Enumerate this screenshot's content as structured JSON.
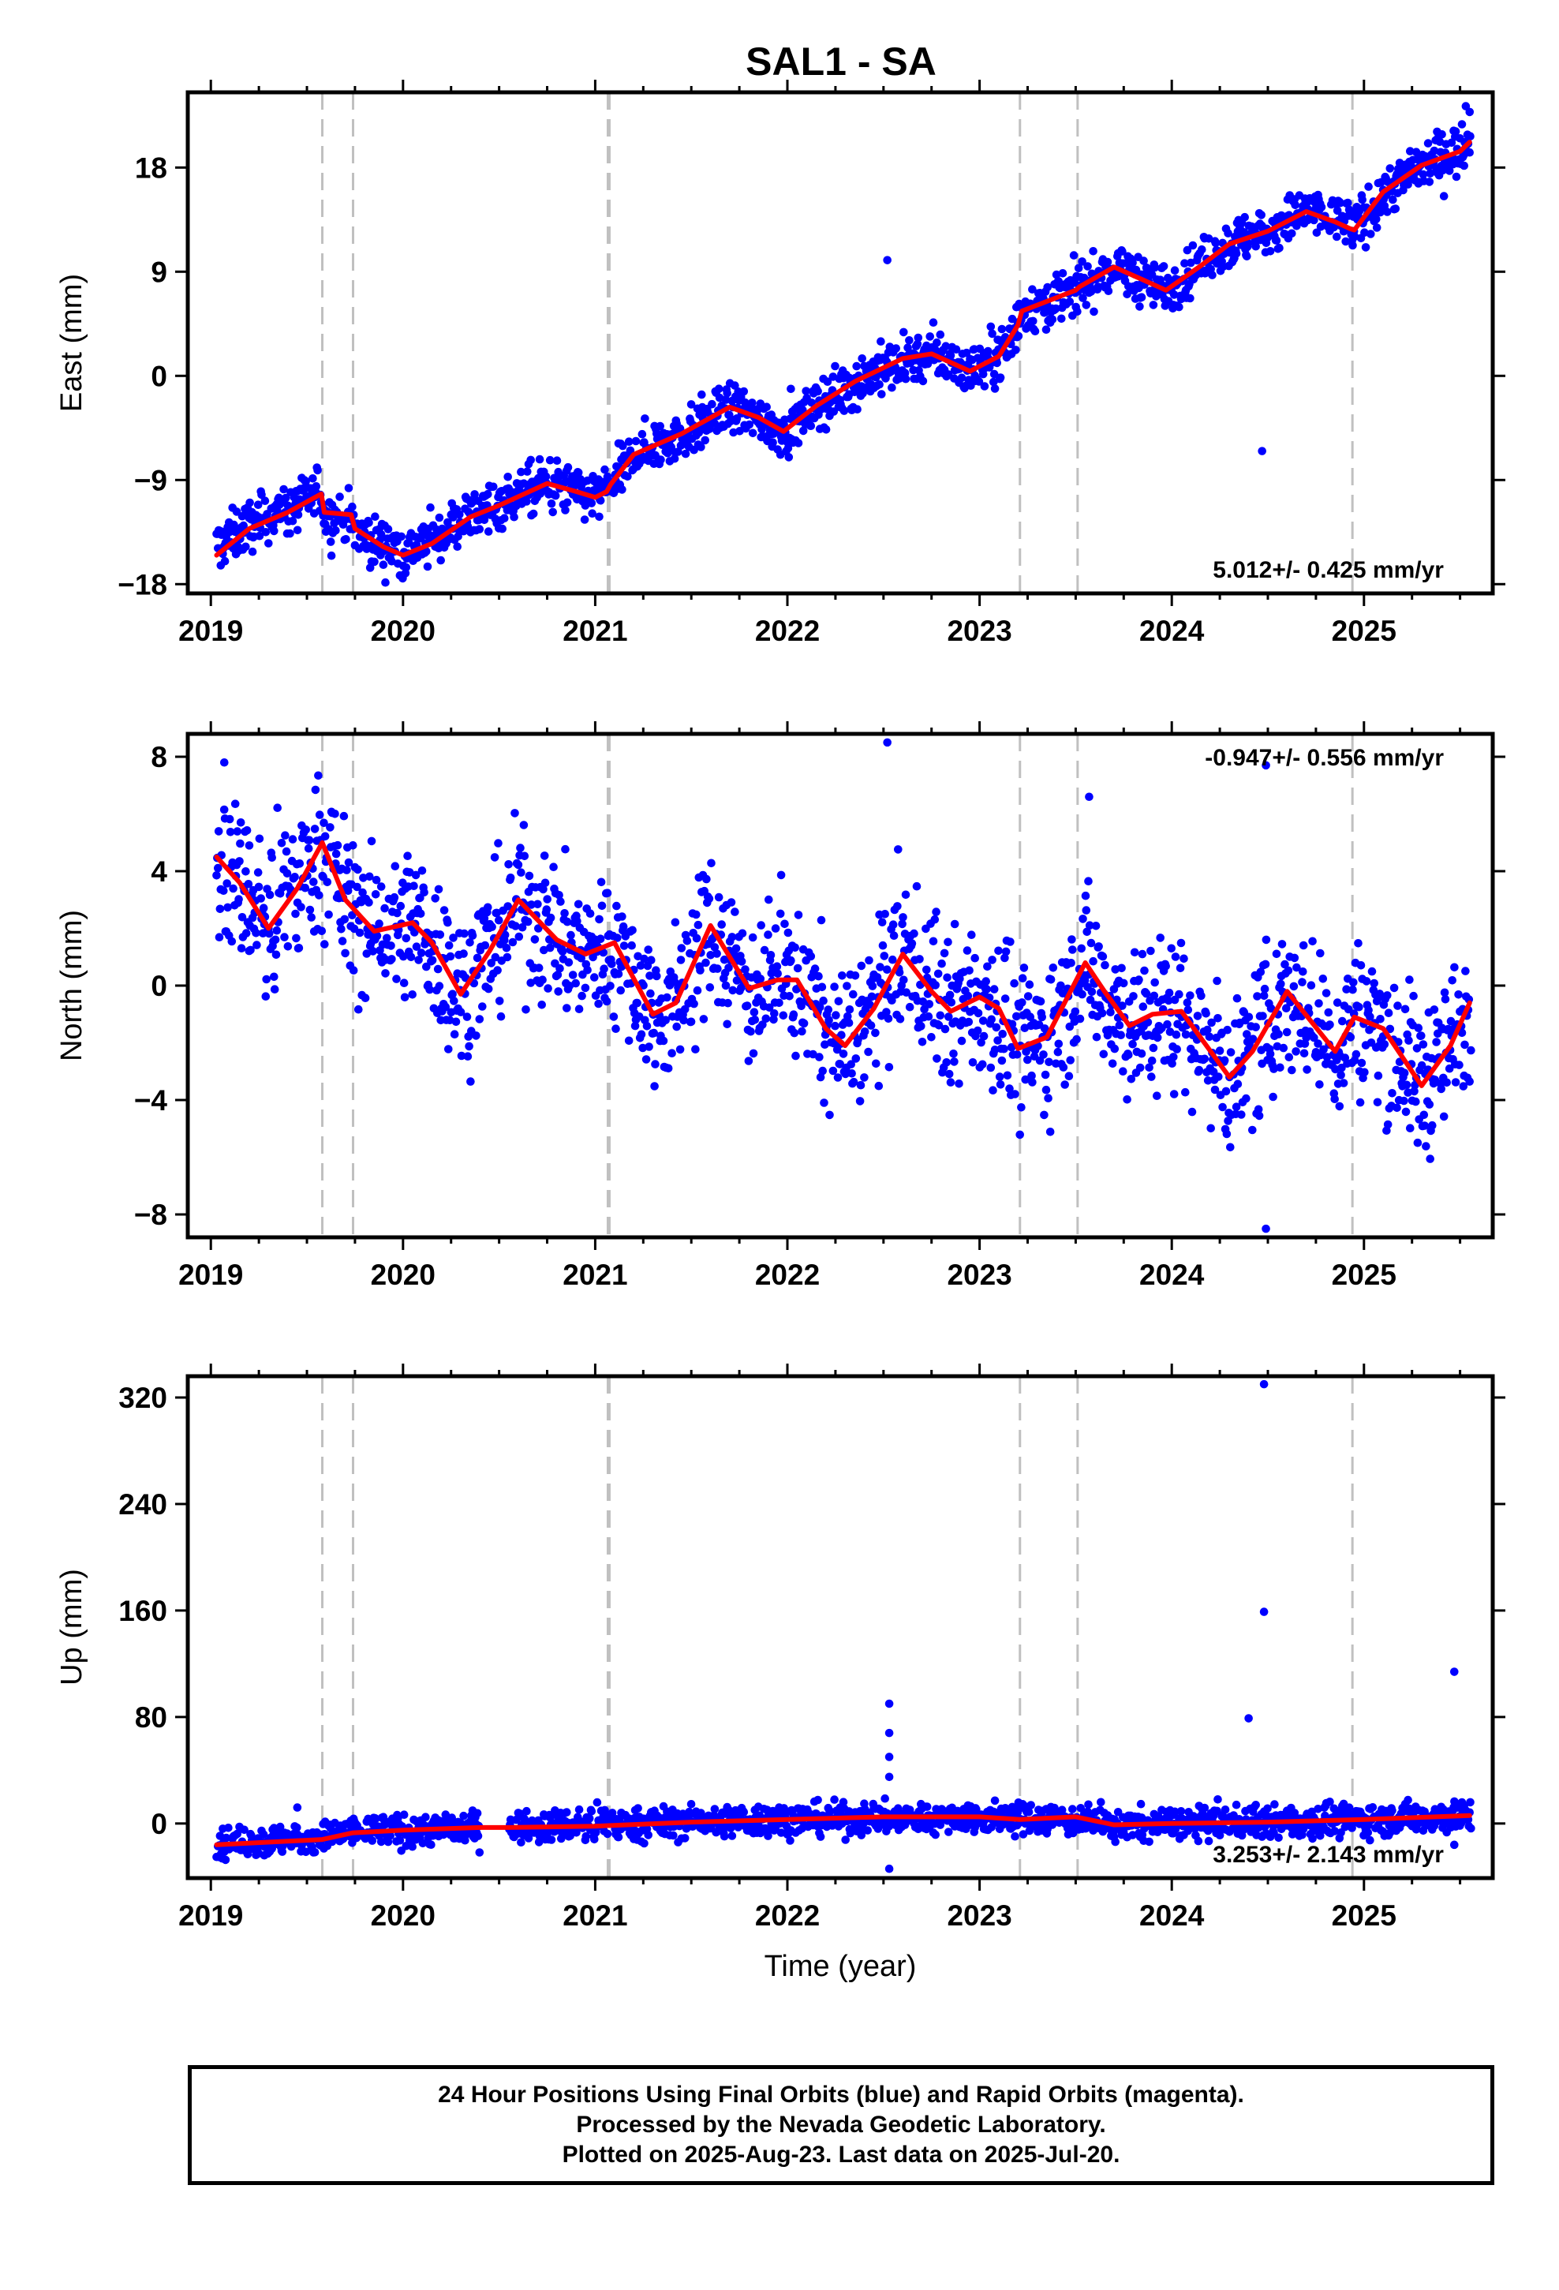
{
  "title": "SAL1 - SA",
  "chart_data": [
    {
      "type": "scatter",
      "panel": "east",
      "ylabel": "East (mm)",
      "xlabel": "",
      "xlim": [
        2018.88,
        2025.67
      ],
      "ylim": [
        -18.8,
        24.5
      ],
      "yticks": [
        -18,
        -9,
        0,
        9,
        18
      ],
      "xticks": [
        2019,
        2020,
        2021,
        2022,
        2023,
        2024,
        2025
      ],
      "grid": false,
      "rate_label": "5.012+/- 0.425 mm/yr",
      "rate_label_position": "bottom-right",
      "offset_lines": [
        2019.58,
        2019.74,
        2021.07,
        2023.21,
        2023.51,
        2024.94
      ],
      "series": [
        {
          "name": "",
          "color": "#0000ff",
          "kind": "points",
          "noise": 1.1,
          "trend": [
            [
              2019.03,
              -14.8
            ],
            [
              2019.2,
              -12.9
            ],
            [
              2019.4,
              -11.6
            ],
            [
              2019.575,
              -10.3
            ],
            [
              2019.59,
              -12.0
            ],
            [
              2019.73,
              -12.4
            ],
            [
              2019.75,
              -13.6
            ],
            [
              2019.9,
              -14.6
            ],
            [
              2020.0,
              -15.3
            ],
            [
              2020.15,
              -14.2
            ],
            [
              2020.35,
              -12.0
            ],
            [
              2020.5,
              -11.0
            ],
            [
              2020.75,
              -9.3
            ],
            [
              2020.9,
              -10.0
            ],
            [
              2021.0,
              -10.5
            ],
            [
              2021.06,
              -9.9
            ],
            [
              2021.08,
              -9.4
            ],
            [
              2021.2,
              -6.8
            ],
            [
              2021.45,
              -5.1
            ],
            [
              2021.7,
              -2.8
            ],
            [
              2021.85,
              -3.7
            ],
            [
              2021.98,
              -4.8
            ],
            [
              2022.15,
              -2.6
            ],
            [
              2022.35,
              -0.6
            ],
            [
              2022.6,
              1.4
            ],
            [
              2022.75,
              1.9
            ],
            [
              2022.95,
              0.5
            ],
            [
              2023.1,
              1.8
            ],
            [
              2023.2,
              4.4
            ],
            [
              2023.22,
              5.6
            ],
            [
              2023.5,
              7.3
            ],
            [
              2023.52,
              7.7
            ],
            [
              2023.7,
              9.3
            ],
            [
              2023.85,
              8.3
            ],
            [
              2023.97,
              7.4
            ],
            [
              2024.15,
              9.5
            ],
            [
              2024.3,
              11.4
            ],
            [
              2024.5,
              12.4
            ],
            [
              2024.7,
              14.2
            ],
            [
              2024.85,
              13.4
            ],
            [
              2024.93,
              13.0
            ],
            [
              2024.95,
              12.7
            ],
            [
              2025.1,
              15.8
            ],
            [
              2025.3,
              18.2
            ],
            [
              2025.5,
              19.5
            ],
            [
              2025.55,
              20.2
            ]
          ]
        },
        {
          "name": "",
          "color": "#0000ff",
          "kind": "outliers",
          "x": [
            2022.52,
            2024.47,
            2025.53,
            2025.55
          ],
          "y": [
            10.0,
            -6.5,
            23.3,
            22.8
          ]
        },
        {
          "name": "",
          "color": "#ff0000",
          "kind": "line",
          "x": [
            2019.03,
            2019.2,
            2019.4,
            2019.575,
            2019.59,
            2019.73,
            2019.75,
            2019.9,
            2020.0,
            2020.15,
            2020.35,
            2020.5,
            2020.75,
            2020.9,
            2021.0,
            2021.06,
            2021.08,
            2021.2,
            2021.45,
            2021.7,
            2021.85,
            2021.98,
            2022.15,
            2022.35,
            2022.6,
            2022.75,
            2022.95,
            2023.1,
            2023.2,
            2023.22,
            2023.5,
            2023.52,
            2023.7,
            2023.85,
            2023.97,
            2024.15,
            2024.3,
            2024.5,
            2024.7,
            2024.85,
            2024.93,
            2024.95,
            2025.1,
            2025.3,
            2025.5,
            2025.55
          ],
          "y": [
            -15.5,
            -13.2,
            -11.8,
            -10.2,
            -11.8,
            -12.0,
            -13.2,
            -14.8,
            -15.5,
            -14.5,
            -12.2,
            -11.2,
            -9.3,
            -10.0,
            -10.5,
            -10.0,
            -9.4,
            -6.8,
            -5.0,
            -2.7,
            -3.6,
            -4.8,
            -2.6,
            -0.5,
            1.5,
            1.9,
            0.4,
            1.7,
            4.4,
            5.6,
            7.4,
            7.7,
            9.4,
            8.3,
            7.4,
            9.5,
            11.4,
            12.5,
            14.2,
            13.3,
            12.7,
            12.6,
            15.9,
            18.2,
            19.4,
            20.2
          ]
        }
      ]
    },
    {
      "type": "scatter",
      "panel": "north",
      "ylabel": "North (mm)",
      "xlabel": "",
      "xlim": [
        2018.88,
        2025.67
      ],
      "ylim": [
        -8.8,
        8.8
      ],
      "yticks": [
        -8,
        -4,
        0,
        4,
        8
      ],
      "xticks": [
        2019,
        2020,
        2021,
        2022,
        2023,
        2024,
        2025
      ],
      "grid": false,
      "rate_label": "-0.947+/- 0.556 mm/yr",
      "rate_label_position": "top-right",
      "offset_lines": [
        2019.58,
        2019.74,
        2021.07,
        2023.21,
        2023.51,
        2024.94
      ],
      "series": [
        {
          "name": "",
          "color": "#0000ff",
          "kind": "points",
          "noise": 1.35,
          "trend": [
            [
              2019.03,
              4.5
            ],
            [
              2019.15,
              3.6
            ],
            [
              2019.3,
              2.0
            ],
            [
              2019.45,
              3.4
            ],
            [
              2019.58,
              5.0
            ],
            [
              2019.7,
              3.0
            ],
            [
              2019.85,
              1.9
            ],
            [
              2020.05,
              2.2
            ],
            [
              2020.15,
              1.5
            ],
            [
              2020.3,
              -0.3
            ],
            [
              2020.45,
              1.2
            ],
            [
              2020.6,
              3.0
            ],
            [
              2020.8,
              1.6
            ],
            [
              2020.95,
              1.1
            ],
            [
              2021.1,
              1.5
            ],
            [
              2021.3,
              -1.0
            ],
            [
              2021.42,
              -0.6
            ],
            [
              2021.6,
              2.1
            ],
            [
              2021.8,
              -0.1
            ],
            [
              2021.95,
              0.2
            ],
            [
              2022.05,
              0.2
            ],
            [
              2022.2,
              -1.5
            ],
            [
              2022.3,
              -2.1
            ],
            [
              2022.45,
              -0.8
            ],
            [
              2022.6,
              1.1
            ],
            [
              2022.75,
              -0.2
            ],
            [
              2022.85,
              -0.9
            ],
            [
              2023.0,
              -0.4
            ],
            [
              2023.1,
              -0.8
            ],
            [
              2023.2,
              -2.2
            ],
            [
              2023.35,
              -1.8
            ],
            [
              2023.55,
              0.8
            ],
            [
              2023.65,
              -0.2
            ],
            [
              2023.78,
              -1.4
            ],
            [
              2023.9,
              -1.0
            ],
            [
              2024.05,
              -0.9
            ],
            [
              2024.3,
              -3.2
            ],
            [
              2024.42,
              -2.3
            ],
            [
              2024.6,
              -0.2
            ],
            [
              2024.85,
              -2.3
            ],
            [
              2024.95,
              -1.1
            ],
            [
              2025.1,
              -1.5
            ],
            [
              2025.3,
              -3.5
            ],
            [
              2025.45,
              -2.1
            ],
            [
              2025.55,
              -0.6
            ]
          ]
        },
        {
          "name": "",
          "color": "#0000ff",
          "kind": "outliers",
          "x": [
            2019.07,
            2019.2,
            2022.52,
            2024.49,
            2024.49,
            2023.57
          ],
          "y": [
            7.8,
            4.9,
            8.5,
            7.7,
            -8.5,
            6.6
          ]
        },
        {
          "name": "",
          "color": "#ff0000",
          "kind": "line",
          "x": [
            2019.03,
            2019.15,
            2019.3,
            2019.45,
            2019.58,
            2019.7,
            2019.85,
            2020.05,
            2020.15,
            2020.3,
            2020.45,
            2020.6,
            2020.8,
            2020.95,
            2021.1,
            2021.3,
            2021.42,
            2021.6,
            2021.8,
            2021.95,
            2022.05,
            2022.2,
            2022.3,
            2022.45,
            2022.6,
            2022.75,
            2022.85,
            2023.0,
            2023.1,
            2023.2,
            2023.35,
            2023.55,
            2023.65,
            2023.78,
            2023.9,
            2024.05,
            2024.3,
            2024.42,
            2024.6,
            2024.85,
            2024.95,
            2025.1,
            2025.3,
            2025.45,
            2025.55
          ],
          "y": [
            4.5,
            3.6,
            2.0,
            3.4,
            5.0,
            3.0,
            1.9,
            2.2,
            1.5,
            -0.3,
            1.2,
            3.0,
            1.6,
            1.1,
            1.5,
            -1.0,
            -0.6,
            2.1,
            -0.1,
            0.2,
            0.2,
            -1.5,
            -2.1,
            -0.8,
            1.1,
            -0.2,
            -0.9,
            -0.4,
            -0.8,
            -2.2,
            -1.8,
            0.8,
            -0.2,
            -1.4,
            -1.0,
            -0.9,
            -3.2,
            -2.3,
            -0.2,
            -2.3,
            -1.1,
            -1.5,
            -3.5,
            -2.1,
            -0.6
          ]
        }
      ]
    },
    {
      "type": "scatter",
      "panel": "up",
      "ylabel": "Up (mm)",
      "xlabel": "Time (year)",
      "xlim": [
        2018.88,
        2025.67
      ],
      "ylim": [
        -41,
        336
      ],
      "yticks": [
        0,
        80,
        160,
        240,
        320
      ],
      "xticks": [
        2019,
        2020,
        2021,
        2022,
        2023,
        2024,
        2025
      ],
      "grid": false,
      "rate_label": "3.253+/- 2.143 mm/yr",
      "rate_label_position": "bottom-right",
      "offset_lines": [
        2019.58,
        2019.74,
        2021.07,
        2023.21,
        2023.51,
        2024.94
      ],
      "gap": [
        2020.4,
        2020.55
      ],
      "series": [
        {
          "name": "",
          "color": "#0000ff",
          "kind": "points",
          "noise": 6,
          "trend": [
            [
              2019.03,
              -16
            ],
            [
              2019.58,
              -11
            ],
            [
              2019.74,
              -6
            ],
            [
              2020.0,
              -5
            ],
            [
              2020.4,
              -3
            ],
            [
              2021.0,
              -1
            ],
            [
              2021.5,
              1
            ],
            [
              2022.0,
              3
            ],
            [
              2022.5,
              4
            ],
            [
              2023.0,
              5
            ],
            [
              2023.5,
              3
            ],
            [
              2023.7,
              -2
            ],
            [
              2024.0,
              0
            ],
            [
              2024.5,
              1
            ],
            [
              2025.0,
              3
            ],
            [
              2025.55,
              6
            ]
          ]
        },
        {
          "name": "",
          "color": "#0000ff",
          "kind": "outliers",
          "x": [
            2019.45,
            2022.53,
            2022.53,
            2022.53,
            2022.53,
            2022.53,
            2024.4,
            2024.48,
            2024.48,
            2025.47,
            2025.47
          ],
          "y": [
            12,
            90,
            68,
            50,
            35,
            -34,
            79,
            159,
            330,
            114,
            -16
          ]
        },
        {
          "name": "",
          "color": "#ff0000",
          "kind": "line",
          "x": [
            2019.03,
            2019.58,
            2019.74,
            2020.0,
            2020.4,
            2020.55,
            2021.0,
            2021.5,
            2022.0,
            2022.5,
            2023.0,
            2023.21,
            2023.5,
            2023.7,
            2024.0,
            2024.5,
            2025.0,
            2025.55
          ],
          "y": [
            -16,
            -12,
            -7,
            -5,
            -3,
            -3,
            -2,
            1,
            3,
            5,
            5,
            3,
            5,
            -1,
            0,
            1,
            3,
            6
          ]
        }
      ]
    }
  ],
  "footer": {
    "line1": "24 Hour Positions Using Final Orbits (blue) and Rapid Orbits (magenta).",
    "line2": "Processed by the Nevada Geodetic Laboratory.",
    "line3": "Plotted on 2025-Aug-23. Last data on 2025-Jul-20."
  }
}
